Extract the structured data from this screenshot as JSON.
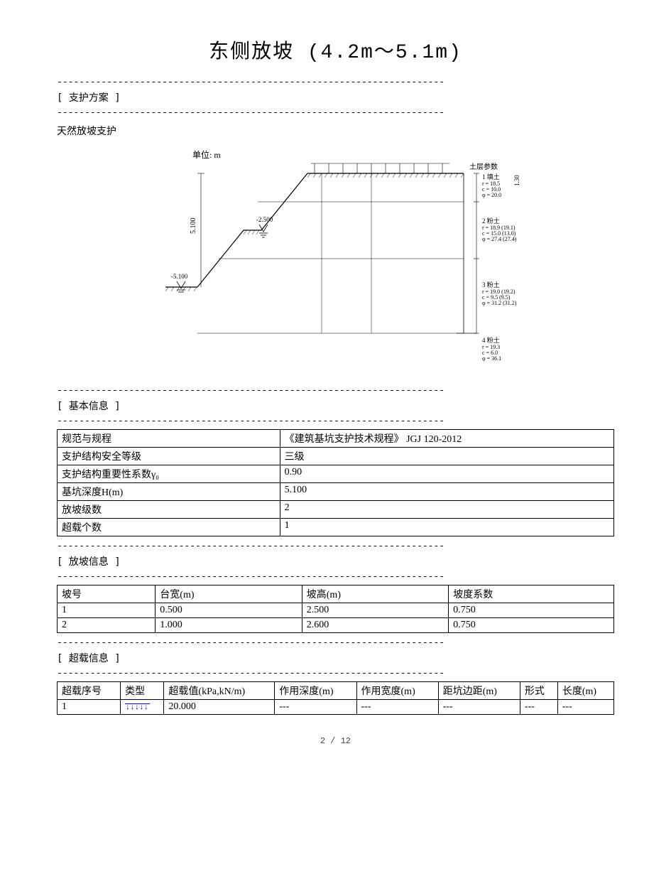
{
  "title": "东侧放坡 (4.2m～5.1m)",
  "dashline": "----------------------------------------------------------------------",
  "section_support": "[ 支护方案 ]",
  "support_text": "天然放坡支护",
  "diagram": {
    "unit_label": "单位: m",
    "background": "#ffffff",
    "stroke": "#000000",
    "thin_stroke_width": 0.7,
    "depth_label": "5.100",
    "mark_25": "-2.500",
    "mark_51": "-5.100",
    "top_right": "土层参数",
    "layer1": {
      "name": "1 填土",
      "r": "r = 18.5",
      "c": "c = 10.0",
      "phi": "φ = 20.0"
    },
    "layer2": {
      "name": "2 粉土",
      "r": "r = 18.9 (19.1)",
      "c": "c = 15.0 (13.0)",
      "phi": "φ = 27.4 (27.4)"
    },
    "layer3": {
      "name": "3 粉土",
      "r": "r = 19.0 (19.2)",
      "c": "c = 9.5 (9.5)",
      "phi": "φ = 31.2 (31.2)"
    },
    "layer4": {
      "name": "4 粉土",
      "r": "r = 19.3",
      "c": "c = 6.0",
      "phi": "φ = 36.1"
    }
  },
  "section_basic": "[ 基本信息 ]",
  "basic_table": {
    "rows": [
      [
        "规范与规程",
        "《建筑基坑支护技术规程》 JGJ 120-2012"
      ],
      [
        "支护结构安全等级",
        "三级"
      ],
      [
        "支护结构重要性系数γ₀",
        "0.90"
      ],
      [
        "基坑深度H(m)",
        "5.100"
      ],
      [
        "放坡级数",
        "2"
      ],
      [
        "超载个数",
        "1"
      ]
    ],
    "col1_width": "40%"
  },
  "section_slope": "[ 放坡信息 ]",
  "slope_table": {
    "headers": [
      "坡号",
      "台宽(m)",
      "坡高(m)",
      "坡度系数"
    ],
    "rows": [
      [
        "1",
        "0.500",
        "2.500",
        "0.750"
      ],
      [
        "2",
        "1.000",
        "2.600",
        "0.750"
      ]
    ]
  },
  "section_load": "[ 超载信息 ]",
  "load_table": {
    "headers": [
      "超载序号",
      "类型",
      "超载值(kPa,kN/m)",
      "作用深度(m)",
      "作用宽度(m)",
      "距坑边距(m)",
      "形式",
      "长度(m)"
    ],
    "rows": [
      [
        "1",
        "__ARROWS__",
        "20.000",
        "---",
        "---",
        "---",
        "---",
        "---"
      ]
    ]
  },
  "page": "2 / 12"
}
